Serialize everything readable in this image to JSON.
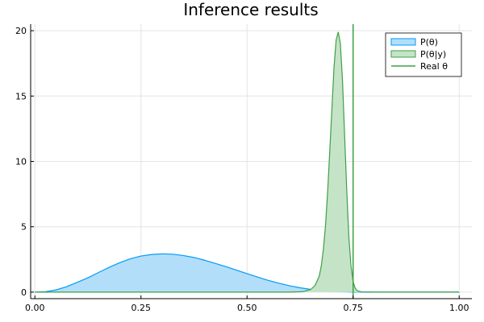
{
  "chart_data": {
    "type": "area",
    "title": "Inference results",
    "xlabel": "",
    "ylabel": "",
    "xlim": [
      -0.01,
      1.03
    ],
    "ylim": [
      -0.5,
      20.5
    ],
    "xticks": [
      0.0,
      0.25,
      0.5,
      0.75,
      1.0
    ],
    "xtick_labels": [
      "0.00",
      "0.25",
      "0.50",
      "0.75",
      "1.00"
    ],
    "yticks": [
      0,
      5,
      10,
      15,
      20
    ],
    "ytick_labels": [
      "0",
      "5",
      "10",
      "15",
      "20"
    ],
    "grid": true,
    "legend_position": "top-right",
    "series": [
      {
        "name": "P(θ)",
        "kind": "area",
        "color": "#009af9",
        "fill": "#b3defa",
        "x": [
          0.0,
          0.025,
          0.05,
          0.075,
          0.1,
          0.125,
          0.15,
          0.175,
          0.2,
          0.225,
          0.25,
          0.275,
          0.3,
          0.325,
          0.35,
          0.375,
          0.4,
          0.425,
          0.45,
          0.475,
          0.5,
          0.525,
          0.55,
          0.575,
          0.6,
          0.625,
          0.65,
          0.675,
          0.7,
          0.725,
          0.75,
          0.8,
          0.85,
          0.9,
          1.0
        ],
        "y": [
          0.0,
          0.03,
          0.17,
          0.42,
          0.75,
          1.1,
          1.5,
          1.9,
          2.25,
          2.55,
          2.76,
          2.88,
          2.93,
          2.9,
          2.8,
          2.65,
          2.44,
          2.2,
          1.95,
          1.68,
          1.41,
          1.15,
          0.9,
          0.68,
          0.49,
          0.33,
          0.21,
          0.12,
          0.06,
          0.03,
          0.01,
          0.0,
          0.0,
          0.0,
          0.0
        ]
      },
      {
        "name": "P(θ|y)",
        "kind": "area",
        "color": "#3ea044",
        "fill": "#c5e3c7",
        "x": [
          0.0,
          0.6,
          0.63,
          0.65,
          0.66,
          0.67,
          0.675,
          0.68,
          0.685,
          0.69,
          0.695,
          0.7,
          0.705,
          0.71,
          0.715,
          0.72,
          0.725,
          0.73,
          0.735,
          0.74,
          0.745,
          0.75,
          0.755,
          0.76,
          0.77,
          0.8,
          1.0
        ],
        "y": [
          0.0,
          0.0,
          0.03,
          0.2,
          0.5,
          1.2,
          2.0,
          3.3,
          5.1,
          7.7,
          10.8,
          14.0,
          17.2,
          19.3,
          19.9,
          19.0,
          16.2,
          12.0,
          7.8,
          4.2,
          2.0,
          0.8,
          0.3,
          0.1,
          0.02,
          0.0,
          0.0
        ]
      },
      {
        "name": "Real θ",
        "kind": "vline",
        "color": "#3ea044",
        "x": 0.75
      }
    ]
  }
}
